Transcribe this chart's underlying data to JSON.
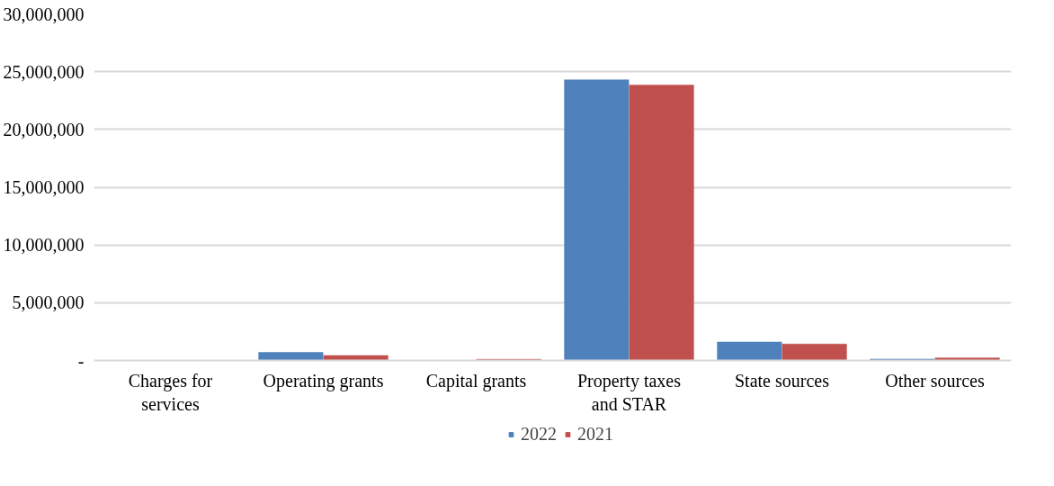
{
  "chart_data": {
    "type": "bar",
    "categories": [
      "Charges for services",
      "Operating grants",
      "Capital grants",
      "Property taxes and STAR",
      "State sources",
      "Other sources"
    ],
    "series": [
      {
        "name": "2022",
        "color": "#4f81bd",
        "values": [
          0,
          700000,
          0,
          24300000,
          1600000,
          120000
        ]
      },
      {
        "name": "2021",
        "color": "#c0504d",
        "values": [
          0,
          430000,
          100000,
          23850000,
          1420000,
          220000
        ]
      }
    ],
    "ylim": [
      0,
      30000000
    ],
    "yticks": [
      {
        "value": 0,
        "label": "-"
      },
      {
        "value": 5000000,
        "label": "5,000,000"
      },
      {
        "value": 10000000,
        "label": "10,000,000"
      },
      {
        "value": 15000000,
        "label": "15,000,000"
      },
      {
        "value": 20000000,
        "label": "20,000,000"
      },
      {
        "value": 25000000,
        "label": "25,000,000"
      },
      {
        "value": 30000000,
        "label": "30,000,000"
      }
    ],
    "grid": "y",
    "legend": "bottom"
  }
}
